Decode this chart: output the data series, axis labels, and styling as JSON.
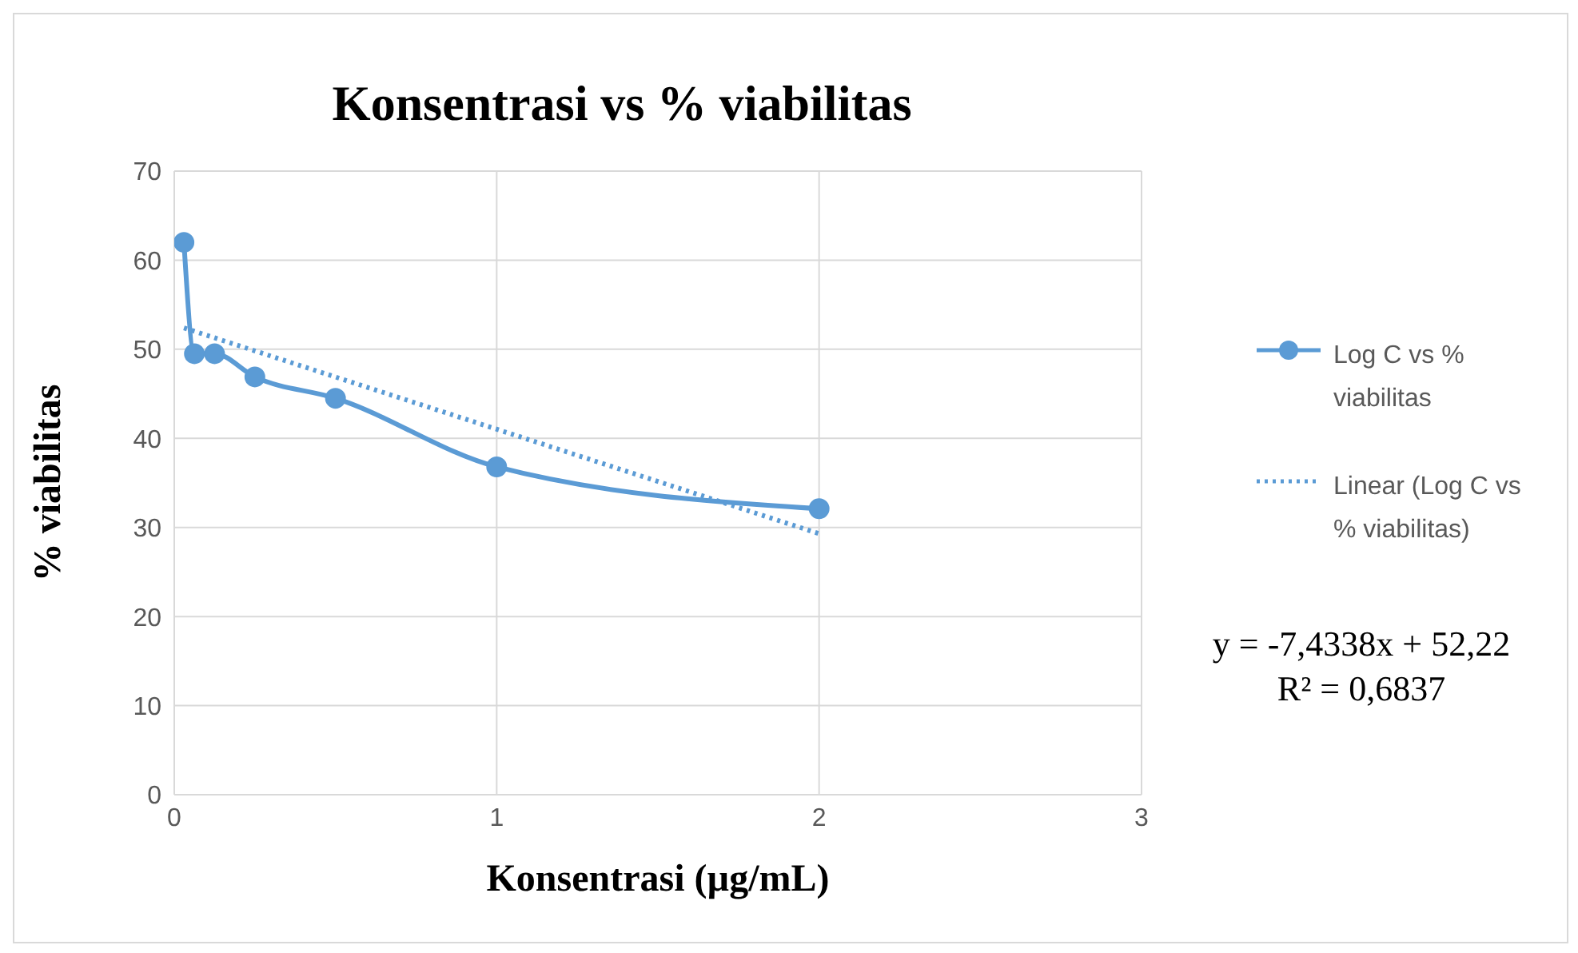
{
  "chart_data": {
    "type": "line",
    "title": "Konsentrasi vs % viabilitas",
    "xlabel": "Konsentrasi (µg/mL)",
    "ylabel": "% viabilitas",
    "xlim": [
      0,
      3
    ],
    "xticks": [
      0,
      1,
      2,
      3
    ],
    "ylim": [
      0,
      70
    ],
    "yticks": [
      0,
      10,
      20,
      30,
      40,
      50,
      60,
      70
    ],
    "grid": true,
    "legend": "right",
    "series": [
      {
        "name": "Log C vs % viabilitas",
        "color": "#5b9bd5",
        "marker": "circle",
        "line_style": "solid",
        "x": [
          0.03,
          0.0625,
          0.125,
          0.25,
          0.5,
          1,
          2
        ],
        "values": [
          62,
          49.5,
          49.5,
          46.9,
          44.5,
          36.8,
          32.1
        ]
      },
      {
        "name": "Linear (Log C vs % viabilitas)",
        "color": "#5b9bd5",
        "marker": "none",
        "line_style": "dotted",
        "x": [
          0.03,
          2
        ],
        "values": [
          52.4,
          29.3
        ]
      }
    ],
    "annotations": [
      "y = -7,4338x + 52,22",
      "R² = 0,6837"
    ]
  }
}
